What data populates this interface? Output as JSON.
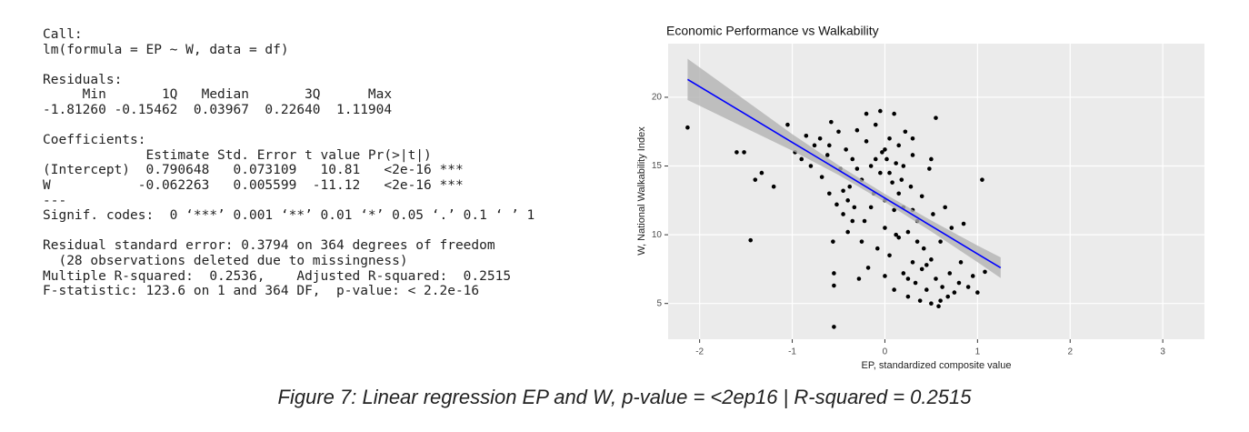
{
  "console": {
    "blocks": [
      [
        "Call:",
        "lm(formula = EP ~ W, data = df)"
      ],
      [
        "Residuals:",
        "     Min       1Q   Median       3Q      Max",
        "-1.81260 -0.15462  0.03967  0.22640  1.11904"
      ],
      [
        "Coefficients:",
        "             Estimate Std. Error t value Pr(>|t|)",
        "(Intercept)  0.790648   0.073109   10.81   <2e-16 ***",
        "W           -0.062263   0.005599  -11.12   <2e-16 ***",
        "---",
        "Signif. codes:  0 ‘***’ 0.001 ‘**’ 0.01 ‘*’ 0.05 ‘.’ 0.1 ‘ ’ 1"
      ],
      [
        "Residual standard error: 0.3794 on 364 degrees of freedom",
        "  (28 observations deleted due to missingness)",
        "Multiple R-squared:  0.2536,    Adjusted R-squared:  0.2515",
        "F-statistic: 123.6 on 1 and 364 DF,  p-value: < 2.2e-16"
      ]
    ]
  },
  "chart_data": {
    "type": "scatter",
    "title": "Economic Performance vs Walkability",
    "x_label": "EP, standardized composite value",
    "y_label": "W, National Walkability Index",
    "x": [
      -2.13,
      -1.6,
      -1.52,
      -1.45,
      -1.4,
      -1.33,
      -1.2,
      -1.05,
      -0.97,
      -0.9,
      -0.85,
      -0.8,
      -0.76,
      -0.7,
      -0.68,
      -0.62,
      -0.6,
      -0.58,
      -0.56,
      -0.55,
      -0.55,
      -0.55,
      -0.52,
      -0.5,
      -0.48,
      -0.45,
      -0.42,
      -0.4,
      -0.38,
      -0.35,
      -0.33,
      -0.3,
      -0.28,
      -0.25,
      -0.22,
      -0.2,
      -0.18,
      -0.15,
      -0.12,
      -0.1,
      -0.08,
      -0.05,
      -0.03,
      0.0,
      0.0,
      0.02,
      0.05,
      0.05,
      0.08,
      0.1,
      0.1,
      0.12,
      0.15,
      0.15,
      0.18,
      0.2,
      0.2,
      0.22,
      0.25,
      0.25,
      0.28,
      0.3,
      0.3,
      0.33,
      0.35,
      0.38,
      0.4,
      0.4,
      0.42,
      0.45,
      0.48,
      0.5,
      0.5,
      0.52,
      0.55,
      0.58,
      0.6,
      0.62,
      0.65,
      0.68,
      0.7,
      0.72,
      0.75,
      0.8,
      0.82,
      0.85,
      0.9,
      0.95,
      1.0,
      1.05,
      0.55,
      0.3,
      -0.2,
      -0.05,
      0.1,
      -0.3,
      -0.1,
      -0.15,
      0.05,
      0.15,
      -0.45,
      -0.6,
      0.0,
      0.2,
      -0.25,
      0.35,
      0.45,
      0.25,
      0.6,
      0.0,
      -0.35,
      0.12,
      0.3,
      -0.4,
      0.5,
      1.08
    ],
    "values": [
      17.8,
      16.0,
      16.0,
      9.6,
      14.0,
      14.5,
      13.5,
      18.0,
      16.0,
      15.5,
      17.2,
      15.0,
      16.5,
      17.0,
      14.2,
      15.8,
      13.0,
      18.2,
      9.5,
      7.2,
      6.3,
      3.3,
      12.2,
      17.5,
      14.8,
      11.5,
      16.2,
      10.2,
      13.5,
      15.5,
      12.0,
      17.6,
      6.8,
      14.0,
      11.0,
      16.8,
      7.6,
      15.0,
      13.0,
      18.0,
      9.0,
      14.5,
      16.0,
      12.5,
      10.5,
      15.5,
      17.0,
      8.5,
      13.8,
      11.8,
      6.0,
      15.2,
      16.5,
      9.8,
      14.0,
      7.2,
      12.0,
      17.5,
      10.2,
      5.5,
      13.5,
      8.0,
      15.8,
      6.5,
      11.0,
      5.2,
      7.5,
      12.8,
      9.0,
      6.0,
      14.8,
      5.0,
      8.2,
      11.5,
      6.8,
      4.8,
      9.5,
      6.2,
      12.0,
      5.5,
      7.2,
      10.5,
      5.8,
      6.5,
      8.0,
      10.8,
      6.2,
      7.0,
      5.8,
      14.0,
      18.5,
      17.0,
      18.8,
      19.0,
      18.8,
      14.8,
      15.5,
      12.0,
      14.5,
      13.0,
      13.2,
      16.5,
      16.2,
      15.0,
      9.5,
      9.5,
      7.8,
      6.8,
      5.2,
      7.0,
      11.0,
      10.0,
      11.8,
      12.5,
      15.5,
      7.3
    ],
    "color": "#000000",
    "fit": {
      "x": [
        -2.13,
        -1.5,
        -1,
        -0.5,
        0,
        0.5,
        1,
        1.25
      ],
      "values": [
        21.3,
        18.75,
        16.72,
        14.7,
        12.67,
        10.64,
        8.61,
        7.6
      ],
      "lower": [
        19.8,
        17.75,
        16.12,
        14.35,
        12.37,
        10.24,
        8.01,
        6.85
      ],
      "upper": [
        22.8,
        19.75,
        17.32,
        15.05,
        12.97,
        11.04,
        9.21,
        8.35
      ],
      "color": "#0000ff",
      "band_color": "#b3b3b3"
    },
    "xlim": [
      -2.34,
      3.45
    ],
    "ylim": [
      2.4,
      23.9
    ],
    "xticks": [
      -2,
      -1,
      0,
      1,
      2,
      3
    ],
    "yticks": [
      5,
      10,
      15,
      20
    ],
    "grid": true,
    "background": "#ebebeb"
  },
  "caption": "Figure 7: Linear regression EP and W, p-value = <2ep16 | R-squared = 0.2515"
}
